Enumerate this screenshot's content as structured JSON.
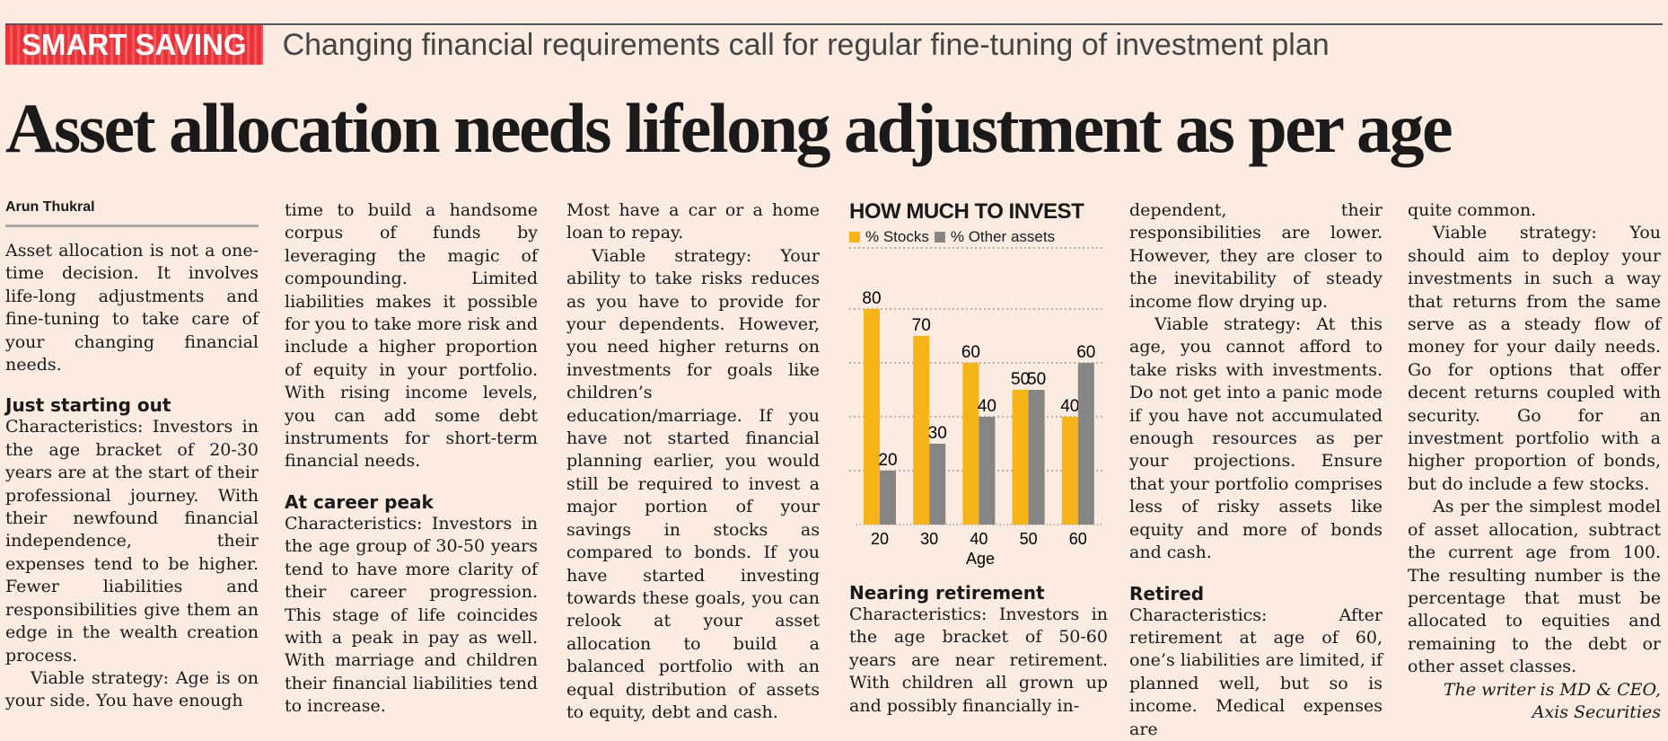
{
  "kicker": {
    "tag": "SMART SAVING",
    "subhead": "Changing financial requirements call for regular fine-tuning of investment plan"
  },
  "headline": "Asset allocation needs lifelong adjustment as per age",
  "byline": "Arun Thukral",
  "col1": {
    "intro": "Asset allocation is not a one-time decision. It involves life-long adjustments and fine-tuning to take care of your changing financial needs.",
    "h1": "Just starting out",
    "p1": "Characteristics: Investors in the age bracket of 20-30 years are at the start of their professional journey. With their newfound financial independence, their expenses tend to be higher. Fewer liabilities and responsibilities give them an edge in the wealth creation process.",
    "p2": "Viable strategy: Age is on your side. You have enough"
  },
  "col2": {
    "p1": "time to build a handsome corpus of funds by leveraging the magic of compounding. Limited liabilities makes it possible for you to take more risk and include a higher proportion of equity in your portfolio. With rising income levels, you can add some debt instruments for short-term financial needs.",
    "h1": "At career peak",
    "p2": "Characteristics: Investors in the age group of 30-50 years tend to have more clarity of their career progression. This stage of life coincides with a peak in pay as well. With marriage and children their financial liabilities tend to increase."
  },
  "col3": {
    "p1": "Most have a car or a home loan to repay.",
    "p2": "Viable strategy: Your ability to take risks reduces as you have to provide for your dependents. However, you need higher returns on investments for goals like children’s education/marriage. If you have not started financial planning earlier, you would still be required to invest a major portion of your savings in stocks as compared to bonds. If you have started investing towards these goals, you can relook at your asset allocation to build a balanced portfolio with an equal distribution of assets to equity, debt and cash."
  },
  "col4": {
    "h1": "Nearing retirement",
    "p1": "Characteristics: Investors in the age bracket of 50-60 years are near retirement. With children all grown up and possibly financially in-"
  },
  "col5": {
    "p1": "dependent, their responsibilities are lower. However, they are closer to the inevitability of steady income flow drying up.",
    "p2": "Viable strategy: At this age, you cannot afford to take risks with investments. Do not get into a panic mode if you have not accumulated enough resources as per your projections. Ensure that your portfolio comprises less of risky assets like equity and more of bonds and cash.",
    "h1": "Retired",
    "p3": "Characteristics: After retirement at age of 60, one’s liabilities are limited, if planned well, but so is income. Medical expenses are"
  },
  "col6": {
    "p1": "quite common.",
    "p2": "Viable strategy: You should aim to deploy your investments in such a way that returns from the same serve as a steady flow of money for your daily needs. Go for options that offer decent returns coupled with security. Go for an investment portfolio with a higher proportion of bonds, but do include a few stocks.",
    "p3": "As per the simplest model of asset allocation, subtract the current age from 100. The resulting number is the percentage that must be allocated to equities and remaining to the debt or other asset classes.",
    "credit1": "The writer is MD & CEO,",
    "credit2": "Axis Securities"
  },
  "chart_data": {
    "type": "bar",
    "title": "HOW MUCH TO INVEST",
    "xlabel": "Age",
    "ylabel": "",
    "categories": [
      "20",
      "30",
      "40",
      "50",
      "60"
    ],
    "series": [
      {
        "name": "% Stocks",
        "values": [
          80,
          70,
          60,
          50,
          40
        ],
        "color": "#f6b419"
      },
      {
        "name": "% Other assets",
        "values": [
          20,
          30,
          40,
          50,
          60
        ],
        "color": "#858585"
      }
    ],
    "ylim": [
      0,
      100
    ],
    "grid": true,
    "legend": "top-left"
  }
}
